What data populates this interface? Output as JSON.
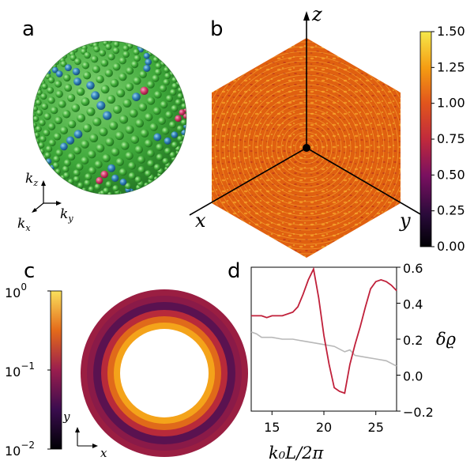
{
  "panels": {
    "a": {
      "letter": "a",
      "axes": {
        "z": "k",
        "z_sub": "z",
        "x": "k",
        "x_sub": "x",
        "y": "k",
        "y_sub": "y"
      }
    },
    "b": {
      "letter": "b",
      "axes": {
        "z": "z",
        "x": "x",
        "y": "y"
      },
      "colorbar": {
        "ticks": [
          "0.00",
          "0.25",
          "0.50",
          "0.75",
          "1.00",
          "1.25",
          "1.50"
        ],
        "min": 0,
        "max": 1.5
      }
    },
    "c": {
      "letter": "c",
      "colorbar": {
        "ticks": [
          {
            "base": "10",
            "exp": "0"
          },
          {
            "base": "10",
            "exp": "−1"
          },
          {
            "base": "10",
            "exp": "−2"
          }
        ]
      },
      "axes": {
        "x": "x",
        "y": "y"
      }
    },
    "d": {
      "letter": "d",
      "xlabel": "k₀L/2π",
      "ylabel": "δϱ",
      "xticks": [
        "15",
        "20",
        "25"
      ],
      "yticks": [
        "−0.2",
        "0.0",
        "0.2",
        "0.4",
        "0.6"
      ]
    }
  },
  "chart_data": {
    "type": "line",
    "title": "",
    "xlabel": "k₀L/2π",
    "ylabel": "δϱ",
    "xlim": [
      13,
      27
    ],
    "ylim": [
      -0.2,
      0.6
    ],
    "series": [
      {
        "name": "red",
        "color": "#c0203a",
        "x": [
          13,
          14,
          14.5,
          15,
          16,
          17,
          17.5,
          18,
          18.5,
          19,
          19.5,
          20,
          20.5,
          21,
          21.5,
          22,
          22.5,
          23,
          23.5,
          24,
          24.5,
          25,
          25.5,
          26,
          26.5,
          27
        ],
        "y": [
          0.33,
          0.33,
          0.32,
          0.33,
          0.33,
          0.35,
          0.38,
          0.45,
          0.53,
          0.59,
          0.43,
          0.22,
          0.06,
          -0.07,
          -0.09,
          -0.1,
          0.06,
          0.17,
          0.27,
          0.38,
          0.48,
          0.52,
          0.53,
          0.52,
          0.5,
          0.47
        ]
      },
      {
        "name": "gray",
        "color": "#b8b8b8",
        "x": [
          13,
          13.5,
          14,
          15,
          16,
          17,
          18,
          19,
          20,
          21,
          22,
          22.5,
          23,
          24,
          25,
          26,
          27
        ],
        "y": [
          0.24,
          0.23,
          0.21,
          0.21,
          0.2,
          0.2,
          0.19,
          0.18,
          0.17,
          0.16,
          0.13,
          0.14,
          0.11,
          0.1,
          0.09,
          0.08,
          0.05
        ]
      }
    ]
  },
  "colors": {
    "sphere_green": "#3ea83a",
    "sphere_blue": "#2f82b8",
    "defect_red": "#d43a6a",
    "field_orange": "#e06010"
  }
}
